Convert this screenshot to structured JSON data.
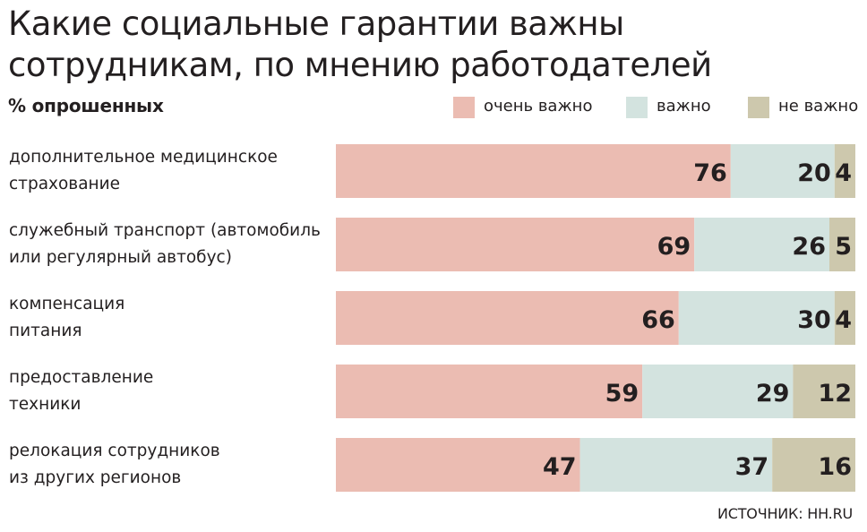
{
  "chart_data": {
    "type": "bar",
    "orientation": "horizontal",
    "stacked": true,
    "title": "Какие социальные гарантии важны сотрудникам, по мнению работодателей",
    "subtitle": "% опрошенных",
    "categories": [
      "дополнительное медицинское\nстрахование",
      "служебный транспорт (автомобиль\nили регулярный автобус)",
      "компенсация\nпитания",
      "предоставление\nтехники",
      "релокация сотрудников\nиз других регионов"
    ],
    "series": [
      {
        "name": "очень важно",
        "color": "#ebbcb2",
        "values": [
          76,
          69,
          66,
          59,
          47
        ]
      },
      {
        "name": "важно",
        "color": "#d3e3df",
        "values": [
          20,
          26,
          30,
          29,
          37
        ]
      },
      {
        "name": "не важно",
        "color": "#cdc8ad",
        "values": [
          4,
          5,
          4,
          12,
          16
        ]
      }
    ],
    "xlim": [
      0,
      100
    ],
    "source": "ИСТОЧНИК: HH.RU"
  }
}
